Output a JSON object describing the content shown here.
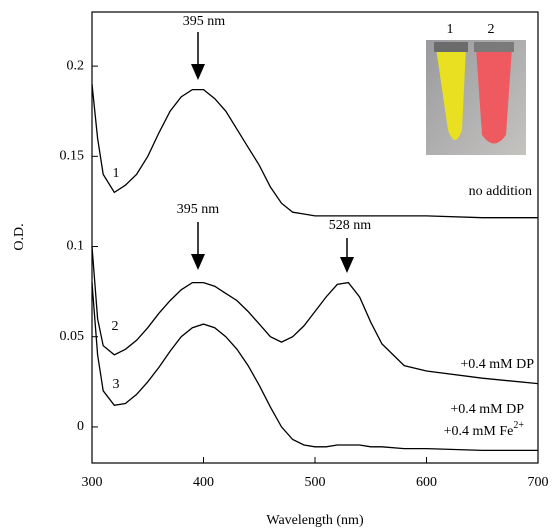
{
  "chart_data": {
    "type": "line",
    "x_label": "Wavelength (nm)",
    "y_label": "O.D.",
    "x": [
      300,
      305,
      310,
      320,
      330,
      340,
      350,
      360,
      370,
      380,
      390,
      400,
      410,
      420,
      430,
      440,
      450,
      460,
      470,
      480,
      490,
      500,
      510,
      520,
      530,
      540,
      550,
      560,
      580,
      600,
      650,
      700
    ],
    "series": [
      {
        "name": "1",
        "color": "#000000",
        "values": [
          0.19,
          0.16,
          0.14,
          0.13,
          0.134,
          0.14,
          0.15,
          0.163,
          0.175,
          0.183,
          0.187,
          0.187,
          0.182,
          0.175,
          0.165,
          0.155,
          0.145,
          0.133,
          0.124,
          0.119,
          0.118,
          0.117,
          0.117,
          0.117,
          0.117,
          0.117,
          0.117,
          0.117,
          0.117,
          0.117,
          0.116,
          0.116
        ]
      },
      {
        "name": "2",
        "color": "#000000",
        "values": [
          0.1,
          0.06,
          0.045,
          0.04,
          0.043,
          0.048,
          0.055,
          0.063,
          0.07,
          0.076,
          0.08,
          0.08,
          0.078,
          0.074,
          0.07,
          0.064,
          0.057,
          0.05,
          0.047,
          0.05,
          0.056,
          0.064,
          0.072,
          0.079,
          0.08,
          0.072,
          0.058,
          0.046,
          0.034,
          0.031,
          0.027,
          0.024
        ]
      },
      {
        "name": "3",
        "color": "#000000",
        "values": [
          0.08,
          0.04,
          0.02,
          0.012,
          0.013,
          0.018,
          0.025,
          0.033,
          0.042,
          0.05,
          0.055,
          0.057,
          0.055,
          0.05,
          0.043,
          0.034,
          0.023,
          0.011,
          0,
          -0.007,
          -0.01,
          -0.011,
          -0.011,
          -0.01,
          -0.01,
          -0.01,
          -0.011,
          -0.011,
          -0.012,
          -0.012,
          -0.013,
          -0.013
        ]
      }
    ],
    "xlim": [
      300,
      700
    ],
    "xticks": [
      300,
      400,
      500,
      600,
      700
    ],
    "ylim": [
      -0.02,
      0.23
    ],
    "yticks": [
      0,
      0.05,
      0.1,
      0.15,
      0.2
    ],
    "annotations": [
      "395 nm",
      "395 nm",
      "528 nm",
      "no addition",
      "+0.4 mM DP",
      "+0.4 mM DP",
      {
        "text": "+0.4 mM Fe",
        "sup": "2+"
      }
    ],
    "inset_labels": [
      "1",
      "2"
    ]
  }
}
